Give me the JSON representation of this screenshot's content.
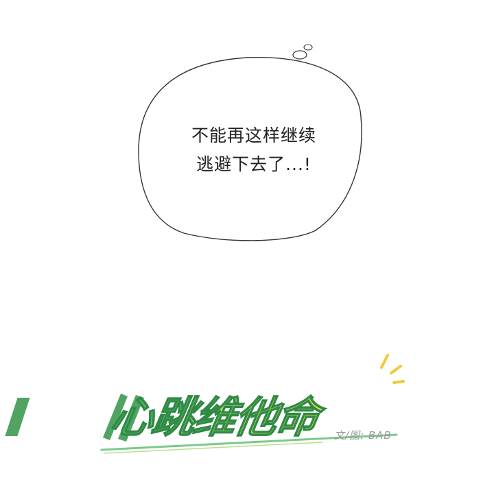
{
  "bubble": {
    "line1": "不能再这样继续",
    "line2": "逃避下去了...!"
  },
  "logo": {
    "title": "心跳维他命",
    "credit": "文/图: BAB",
    "colors": {
      "green": "#5cc46a",
      "yellow": "#e8d44a",
      "light_green": "#b8e08a",
      "underline": "#7cc98a",
      "splash": "#f0c93a"
    }
  }
}
